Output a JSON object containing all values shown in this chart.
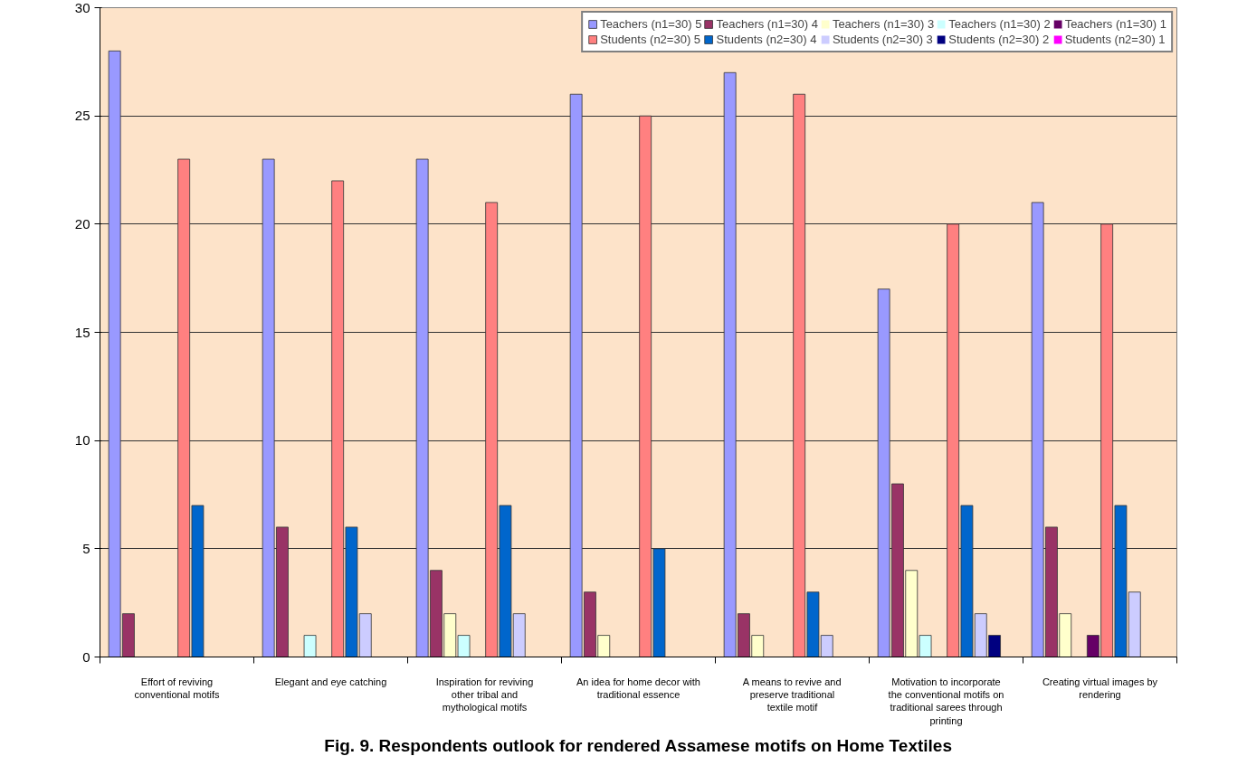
{
  "chart_data": {
    "type": "bar",
    "title": "Fig. 9. Respondents outlook for rendered Assamese motifs on Home Textiles",
    "categories": [
      "Effort of reviving conventional motifs",
      "Elegant and eye catching",
      "Inspiration for reviving other tribal and mythological motifs",
      "An idea for home decor with traditional essence",
      "A means to revive and preserve traditional textile motif",
      "Motivation to incorporate the conventional motifs on traditional sarees through printing",
      "Creating virtual images by rendering"
    ],
    "series": [
      {
        "name": "Teachers (n1=30) 5",
        "color": "#9999ff",
        "values": [
          28,
          23,
          23,
          26,
          27,
          17,
          21
        ]
      },
      {
        "name": "Teachers (n1=30) 4",
        "color": "#993366",
        "values": [
          2,
          6,
          4,
          3,
          2,
          8,
          6
        ]
      },
      {
        "name": "Teachers (n1=30) 3",
        "color": "#ffffcc",
        "values": [
          0,
          0,
          2,
          1,
          1,
          4,
          2
        ]
      },
      {
        "name": "Teachers (n1=30) 2",
        "color": "#ccffff",
        "values": [
          0,
          1,
          1,
          0,
          0,
          1,
          0
        ]
      },
      {
        "name": "Teachers (n1=30) 1",
        "color": "#660066",
        "values": [
          0,
          0,
          0,
          0,
          0,
          0,
          1
        ]
      },
      {
        "name": "Students (n2=30) 5",
        "color": "#ff8080",
        "values": [
          23,
          22,
          21,
          25,
          26,
          20,
          20
        ]
      },
      {
        "name": "Students (n2=30) 4",
        "color": "#0066cc",
        "values": [
          7,
          6,
          7,
          5,
          3,
          7,
          7
        ]
      },
      {
        "name": "Students (n2=30) 3",
        "color": "#ccccff",
        "values": [
          0,
          2,
          2,
          0,
          1,
          2,
          3
        ]
      },
      {
        "name": "Students (n2=30) 2",
        "color": "#000080",
        "values": [
          0,
          0,
          0,
          0,
          0,
          1,
          0
        ]
      },
      {
        "name": "Students (n2=30) 1",
        "color": "#ff00ff",
        "values": [
          0,
          0,
          0,
          0,
          0,
          0,
          0
        ]
      }
    ],
    "ylim": [
      0,
      30
    ],
    "yticks": [
      0,
      5,
      10,
      15,
      20,
      25,
      30
    ],
    "grid": "y",
    "legend": "top right"
  }
}
